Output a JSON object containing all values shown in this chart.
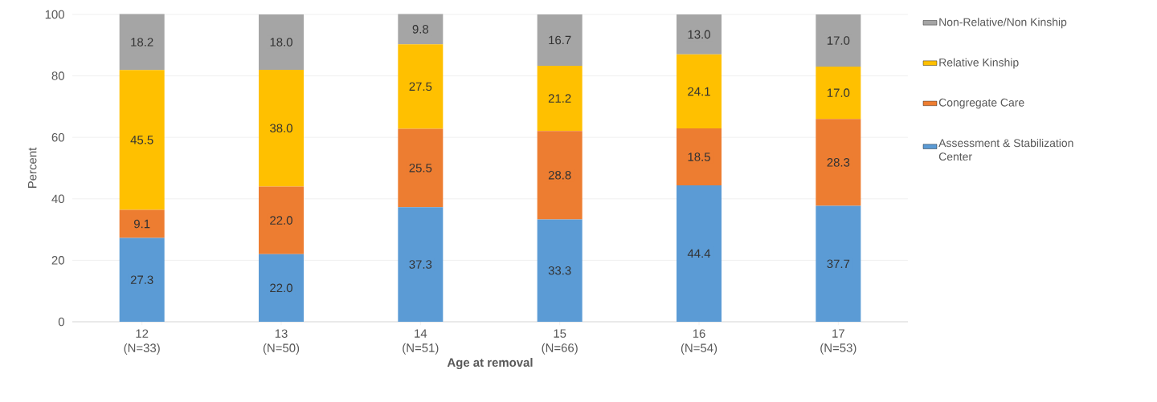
{
  "chart_data": {
    "type": "bar",
    "stacked": true,
    "xlabel": "Age at removal",
    "ylabel": "Percent",
    "categories": [
      "12 (N=33)",
      "13 (N=50)",
      "14 (N=51)",
      "15 (N=66)",
      "16 (N=54)",
      "17 (N=53)"
    ],
    "series": [
      {
        "name": "Assessment & Stabilization Center",
        "color": "#5b9bd5",
        "values": [
          27.3,
          22.0,
          37.3,
          33.3,
          44.4,
          37.7
        ],
        "value_labels": [
          "27.3",
          "22.0",
          "37.3",
          "33.3",
          "44.4",
          "37.7"
        ]
      },
      {
        "name": "Congregate Care",
        "color": "#ed7d31",
        "values": [
          9.1,
          22.0,
          25.5,
          28.8,
          18.5,
          28.3
        ],
        "value_labels": [
          "9.1",
          "22.0",
          "25.5",
          "28.8",
          "18.5",
          "28.3"
        ]
      },
      {
        "name": "Relative Kinship",
        "color": "#ffc000",
        "values": [
          45.5,
          38.0,
          27.5,
          21.2,
          24.1,
          17.0
        ],
        "value_labels": [
          "45.5",
          "38.0",
          "27.5",
          "21.2",
          "24.1",
          "17.0"
        ]
      },
      {
        "name": "Non-Relative/Non Kinship",
        "color": "#a5a5a5",
        "values": [
          18.2,
          18.0,
          9.8,
          16.7,
          13.0,
          17.0
        ],
        "value_labels": [
          "18.2",
          "18.0",
          "9.8",
          "16.7",
          "13.0",
          "17.0"
        ]
      }
    ],
    "ylim": [
      0,
      100
    ],
    "yticks": [
      0,
      20,
      40,
      60,
      80,
      100
    ],
    "grid": "y",
    "legend": "right"
  }
}
